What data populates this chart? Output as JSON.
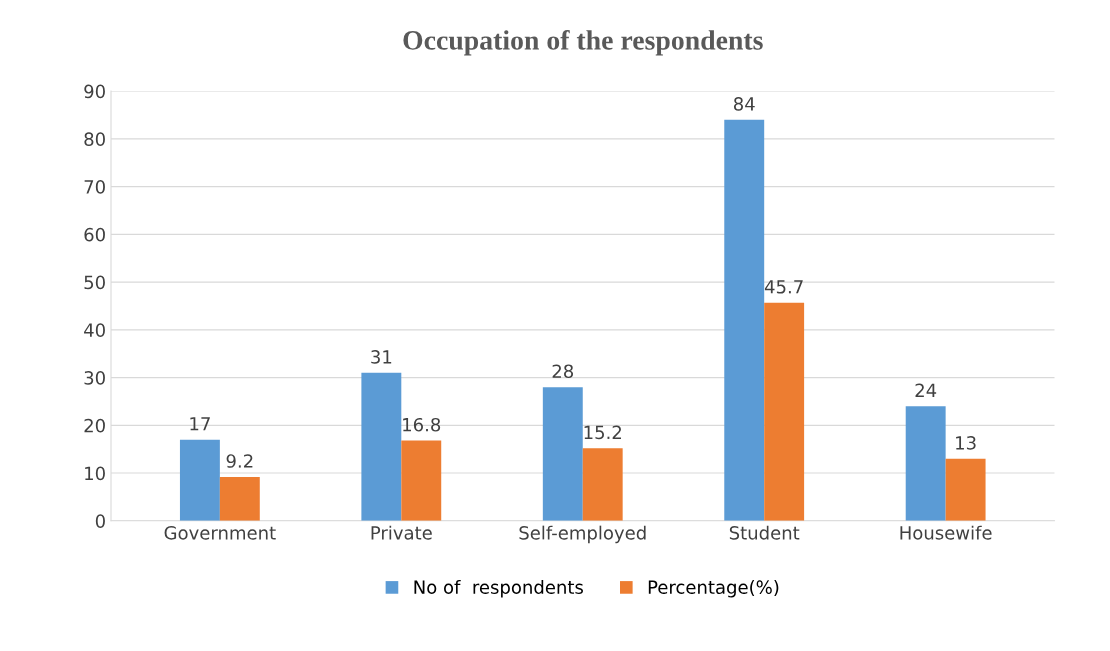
{
  "chart_data": {
    "type": "bar",
    "title": "Occupation of the respondents",
    "categories": [
      "Government",
      "Private",
      "Self-employed",
      "Student",
      "Housewife"
    ],
    "series": [
      {
        "name": "No of  respondents",
        "color": "#5b9bd5",
        "values": [
          17,
          31,
          28,
          84,
          24
        ]
      },
      {
        "name": "Percentage(%)",
        "color": "#ed7d31",
        "values": [
          9.2,
          16.8,
          15.2,
          45.7,
          13
        ]
      }
    ],
    "ylim": [
      0,
      90
    ],
    "yticks": [
      0,
      10,
      20,
      30,
      40,
      50,
      60,
      70,
      80,
      90
    ],
    "grid": "y",
    "legend": "bottom",
    "data_labels": true
  }
}
